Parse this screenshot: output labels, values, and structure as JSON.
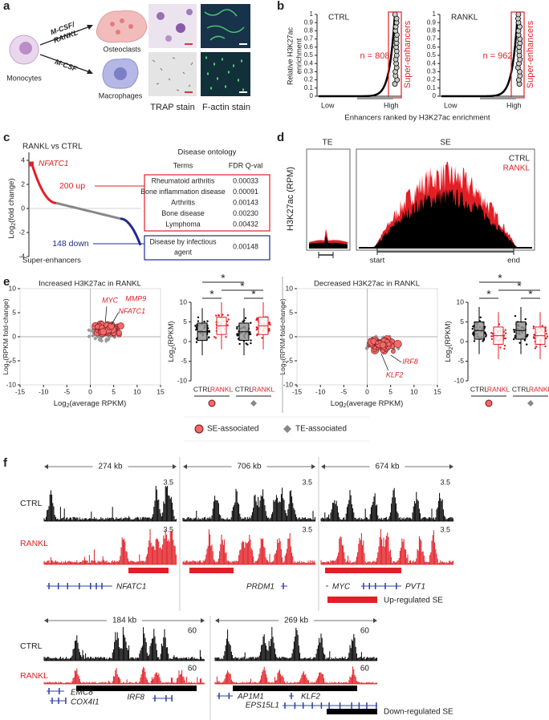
{
  "a": {
    "label": "a",
    "monocytes": "Monocytes",
    "to_osteoclasts": [
      "M-CSF/",
      "RANKL"
    ],
    "to_macrophages": "M-CSF",
    "osteoclasts": "Osteoclasts",
    "macrophages": "Macrophages",
    "trap": "TRAP stain",
    "factin": "F-actin stain"
  },
  "b": {
    "label": "b",
    "ylabel": [
      "Relative H3K27ac",
      "enrichment"
    ],
    "ylim": [
      0,
      1
    ],
    "yticks": [
      0,
      0.1,
      0.2,
      0.3,
      0.4,
      0.5,
      0.6,
      0.7,
      0.8,
      0.9,
      1
    ],
    "xlabel": "Enhancers ranked by H3K27ac enrichment",
    "plots": [
      {
        "title": "CTRL",
        "n": "n = 808",
        "region": "Super-enhancers",
        "low": "Low",
        "high": "High"
      },
      {
        "title": "RANKL",
        "n": "n = 962",
        "region": "Super-enhancers",
        "low": "Low",
        "high": "High"
      }
    ]
  },
  "c": {
    "label": "c",
    "title": "RANKL vs CTRL",
    "ylabel": [
      "Log",
      "2",
      "(fold change)"
    ],
    "ylim": [
      -4,
      4
    ],
    "yticks": [
      -4,
      -2,
      0,
      2,
      4
    ],
    "gene": "NFATC1",
    "up": "200 up",
    "down": "148 down",
    "xlabel": "Super-enhancers",
    "ontology": {
      "title": "Disease ontology",
      "header": [
        "Terms",
        "FDR Q-val"
      ],
      "up_rows": [
        [
          "Rheumatoid arthritis",
          "0.00033"
        ],
        [
          "Bone inflammation disease",
          "0.00091"
        ],
        [
          "Arthritis",
          "0.00143"
        ],
        [
          "Bone disease",
          "0.00230"
        ],
        [
          "Lymphoma",
          "0.00432"
        ]
      ],
      "down_rows": [
        [
          [
            "Disease by infectious",
            "agent"
          ],
          "0.00148"
        ]
      ]
    }
  },
  "d": {
    "label": "d",
    "te": "TE",
    "se": "SE",
    "ylabel": "H3K27ac (RPM)",
    "legend": [
      "CTRL",
      "RANKL"
    ],
    "start": "start",
    "end": "end"
  },
  "e": {
    "label": "e",
    "legend": [
      "SE-associated",
      "TE-associated"
    ],
    "panels": [
      {
        "title": "Increased H3K27ac in RANKL",
        "ylabel": [
          "Log",
          "2",
          "(RPKM fold-change)"
        ],
        "xlabel": [
          "Log",
          "2",
          "(average RPKM)"
        ],
        "xlim": [
          -15,
          15
        ],
        "xticks": [
          -15,
          -10,
          -5,
          0,
          5,
          10,
          15
        ],
        "ylim": [
          -10,
          10
        ],
        "yticks": [
          -10,
          -5,
          0,
          5,
          10
        ],
        "genes": [
          "MYC",
          "MMP9",
          "NFATC1"
        ],
        "box_ylabel": [
          "Log",
          "2",
          "(RPKM)"
        ],
        "box_ylim": [
          -10,
          10
        ],
        "box_yticks": [
          -10,
          -5,
          0,
          5,
          10
        ],
        "groups": [
          "CTRL",
          "RANKL",
          "CTRL",
          "RANKL"
        ],
        "star": "*"
      },
      {
        "title": "Decreased H3K27ac in RANKL",
        "ylabel": [
          "Log",
          "2",
          "(RPKM fold-change)"
        ],
        "xlabel": [
          "Log",
          "2",
          "(average RPKM)"
        ],
        "xlim": [
          -15,
          15
        ],
        "xticks": [
          -15,
          -10,
          -5,
          0,
          5,
          10,
          15
        ],
        "ylim": [
          -10,
          10
        ],
        "yticks": [
          -10,
          -5,
          0,
          5,
          10
        ],
        "genes": [
          "IRF8",
          "KLF2"
        ],
        "box_ylabel": [
          "Log",
          "2",
          "(RPKM)"
        ],
        "box_ylim": [
          -10,
          10
        ],
        "box_yticks": [
          -10,
          -5,
          0,
          5,
          10
        ],
        "groups": [
          "CTRL",
          "RANKL",
          "CTRL",
          "RANKL"
        ],
        "star": "*"
      }
    ]
  },
  "f": {
    "label": "f",
    "ctrl": "CTRL",
    "rankl": "RANKL",
    "up_se": "Up-regulated SE",
    "down_se": "Down-regulated SE",
    "loci": [
      {
        "span": "274 kb",
        "scales": [
          3.5,
          3.5
        ],
        "genes": [
          "NFATC1"
        ]
      },
      {
        "span": "706 kb",
        "scales": [
          3.5,
          3.5
        ],
        "genes": [
          "PRDM1"
        ]
      },
      {
        "span": "674 kb",
        "scales": [
          3.5,
          3.5
        ],
        "genes": [
          "MYC",
          "PVT1"
        ]
      },
      {
        "span": "184 kb",
        "scales": [
          60,
          60
        ],
        "genes": [
          "EMC8",
          "COX4I1",
          "IRF8"
        ]
      },
      {
        "span": "269 kb",
        "scales": [
          60,
          60
        ],
        "genes": [
          "AP1M1",
          "KLF2",
          "EPS15L1"
        ]
      }
    ]
  }
}
